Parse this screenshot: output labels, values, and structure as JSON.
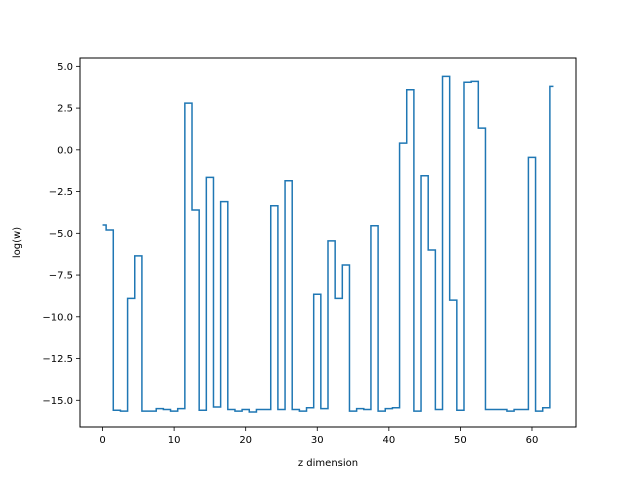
{
  "chart_data": {
    "type": "line",
    "drawstyle": "steps-mid",
    "title": "",
    "xlabel": "z dimension",
    "ylabel": "log(w)",
    "xlim": [
      -3.15,
      66.15
    ],
    "ylim": [
      -16.6,
      5.5
    ],
    "x_ticks": [
      0,
      10,
      20,
      30,
      40,
      50,
      60
    ],
    "x_tick_labels": [
      "0",
      "10",
      "20",
      "30",
      "40",
      "50",
      "60"
    ],
    "y_ticks": [
      -15.0,
      -12.5,
      -10.0,
      -7.5,
      -5.0,
      -2.5,
      0.0,
      2.5,
      5.0
    ],
    "y_tick_labels": [
      "−15.0",
      "−12.5",
      "−10.0",
      "−7.5",
      "−5.0",
      "−2.5",
      "0.0",
      "2.5",
      "5.0"
    ],
    "grid": false,
    "line_color": "#1f77b4",
    "series": [
      {
        "x": [
          0,
          1,
          2,
          3,
          4,
          5,
          6,
          7,
          8,
          9,
          10,
          11,
          12,
          13,
          14,
          15,
          16,
          17,
          18,
          19,
          20,
          21,
          22,
          23,
          24,
          25,
          26,
          27,
          28,
          29,
          30,
          31,
          32,
          33,
          34,
          35,
          36,
          37,
          38,
          39,
          40,
          41,
          42,
          43,
          44,
          45,
          46,
          47,
          48,
          49,
          50,
          51,
          52,
          53,
          54,
          55,
          56,
          57,
          58,
          59,
          60,
          61,
          62,
          63
        ],
        "values": [
          -4.5,
          -4.8,
          -15.6,
          -15.65,
          -8.9,
          -6.35,
          -15.65,
          -15.65,
          -15.5,
          -15.55,
          -15.65,
          -15.5,
          2.8,
          -3.6,
          -15.6,
          -1.65,
          -15.4,
          -3.1,
          -15.55,
          -15.65,
          -15.55,
          -15.7,
          -15.55,
          -15.55,
          -3.35,
          -15.55,
          -1.85,
          -15.55,
          -15.65,
          -15.45,
          -8.65,
          -15.5,
          -5.45,
          -8.9,
          -6.9,
          -15.65,
          -15.5,
          -15.55,
          -4.55,
          -15.65,
          -15.5,
          -15.45,
          0.4,
          3.6,
          -15.65,
          -1.55,
          -6.0,
          -15.55,
          4.4,
          -9.0,
          -15.6,
          4.05,
          4.1,
          1.3,
          -15.55,
          -15.55,
          -15.55,
          -15.65,
          -15.55,
          -15.55,
          -0.45,
          -15.65,
          -15.45,
          3.8
        ]
      }
    ]
  }
}
